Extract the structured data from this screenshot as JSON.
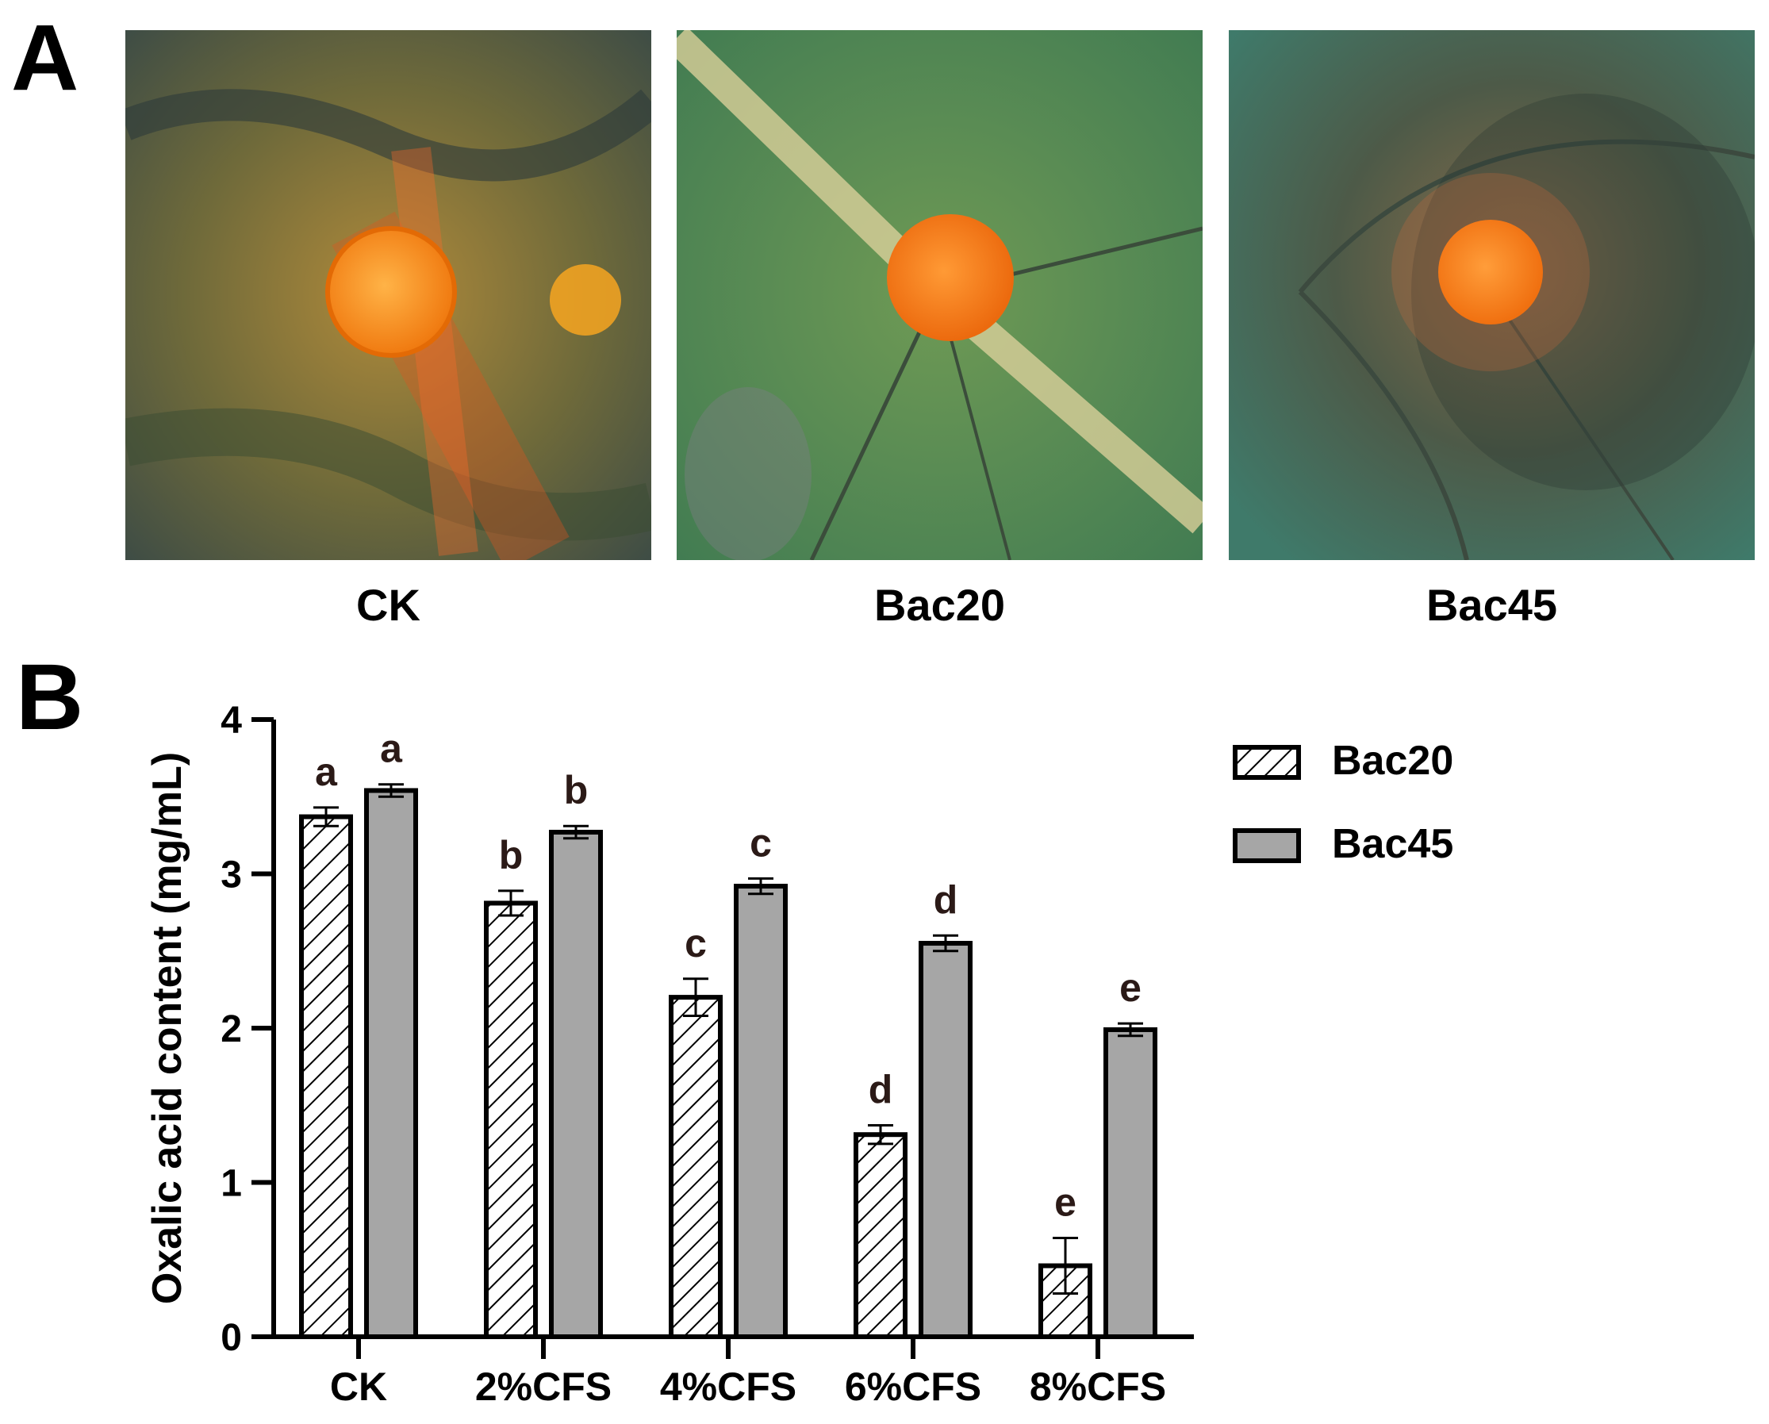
{
  "panels": {
    "a": {
      "label": "A"
    },
    "b": {
      "label": "B"
    }
  },
  "photos": [
    {
      "caption": "CK",
      "description_icon": "leaf-lesion-photo"
    },
    {
      "caption": "Bac20",
      "description_icon": "leaf-lesion-photo"
    },
    {
      "caption": "Bac45",
      "description_icon": "leaf-lesion-photo"
    }
  ],
  "chart_data": {
    "type": "bar",
    "ylabel": "Oxalic acid content (mg/mL)",
    "xlabel": "",
    "categories": [
      "CK",
      "2%CFS",
      "4%CFS",
      "6%CFS",
      "8%CFS"
    ],
    "ylim": [
      0,
      4
    ],
    "yticks": [
      0,
      1,
      2,
      3,
      4
    ],
    "series": [
      {
        "name": "Bac20",
        "pattern": "hatched",
        "fill": "#ffffff",
        "values": [
          3.37,
          2.81,
          2.2,
          1.31,
          0.46
        ],
        "errors": [
          0.06,
          0.08,
          0.12,
          0.06,
          0.18
        ],
        "letters": [
          "a",
          "b",
          "c",
          "d",
          "e"
        ]
      },
      {
        "name": "Bac45",
        "pattern": "solid",
        "fill": "#a6a6a6",
        "values": [
          3.54,
          3.27,
          2.92,
          2.55,
          1.99
        ],
        "errors": [
          0.04,
          0.04,
          0.05,
          0.05,
          0.04
        ],
        "letters": [
          "a",
          "b",
          "c",
          "d",
          "e"
        ]
      }
    ],
    "legend_position": "top-right",
    "letter_color": "#2b1a17"
  }
}
